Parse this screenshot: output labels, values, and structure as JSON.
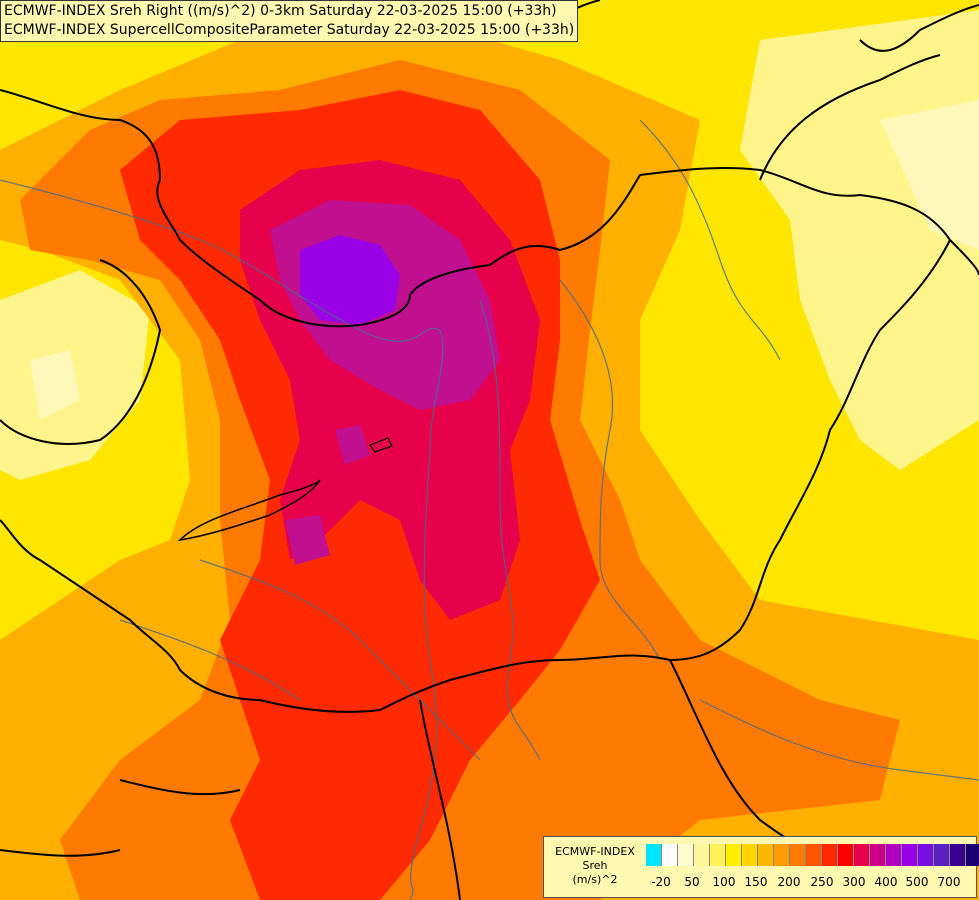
{
  "header": {
    "line1": "ECMWF-INDEX Sreh Right ((m/s)^2) 0-3km Saturday 22-03-2025 15:00 (+33h)",
    "line2": "ECMWF-INDEX SupercellCompositeParameter Saturday 22-03-2025 15:00 (+33h)"
  },
  "legend": {
    "title1": "ECMWF-INDEX",
    "title2": "Sreh",
    "unit": "(m/s)^2",
    "ticks": [
      "-20",
      "50",
      "100",
      "150",
      "200",
      "250",
      "300",
      "400",
      "500",
      "700"
    ],
    "colors": [
      "#00e5ff",
      "#ffffff",
      "#fffbd0",
      "#fff79a",
      "#fff35a",
      "#ffee00",
      "#ffd500",
      "#ffb800",
      "#ff9a00",
      "#ff7a00",
      "#ff5500",
      "#ff2a00",
      "#ff0000",
      "#e6004c",
      "#cc0088",
      "#b000c0",
      "#9a00e6",
      "#7a10e0",
      "#5a20c0",
      "#3a0090",
      "#1a0070"
    ]
  },
  "map_colors": {
    "base": "#ffe600",
    "light": "#fff79a",
    "orange": "#ffb000",
    "dark_orange": "#ff7a00",
    "red": "#ff2a00",
    "crimson": "#e6004c",
    "magenta": "#c01090",
    "violet": "#9a00e6",
    "border": "#000000",
    "river": "#4a6a8a"
  }
}
